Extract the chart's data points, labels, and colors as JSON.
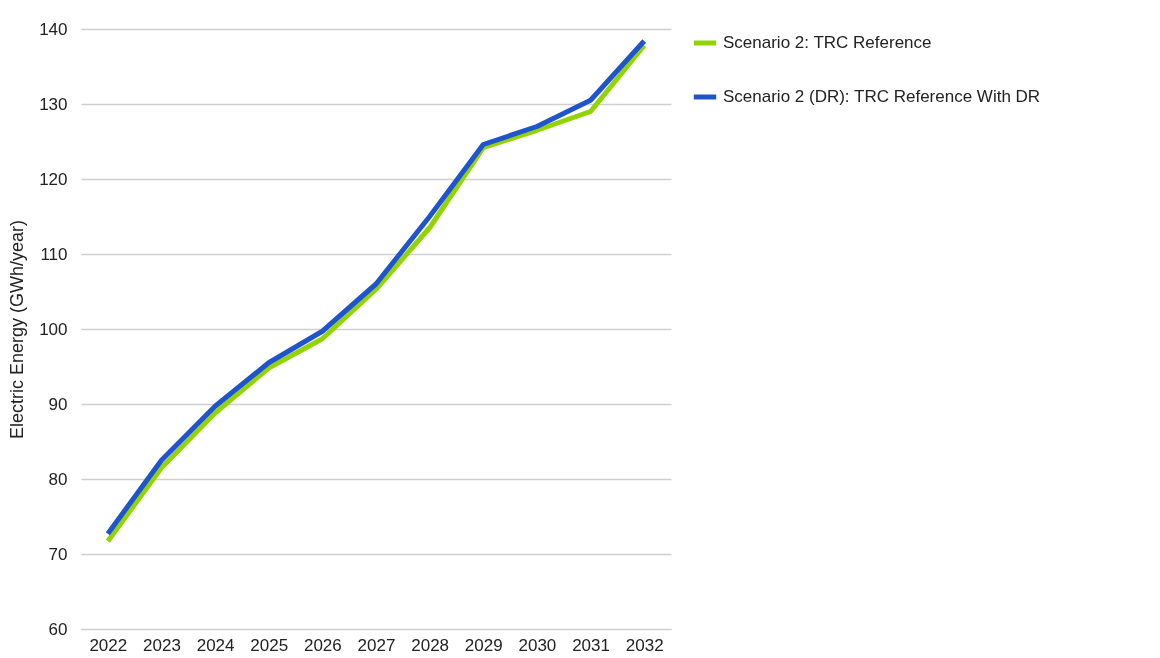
{
  "chart_data": {
    "type": "line",
    "ylabel": "Electric Energy (GWh/year)",
    "categories": [
      "2022",
      "2023",
      "2024",
      "2025",
      "2026",
      "2027",
      "2028",
      "2029",
      "2030",
      "2031",
      "2032"
    ],
    "series": [
      {
        "name": "Scenario 2: TRC Reference",
        "color": "#92d400",
        "values": [
          71.7,
          81.5,
          88.8,
          94.8,
          98.7,
          105.3,
          113.5,
          124.2,
          126.5,
          129.0,
          137.8
        ]
      },
      {
        "name": "Scenario 2 (DR): TRC Reference With DR",
        "color": "#1f55cc",
        "values": [
          72.7,
          82.5,
          89.7,
          95.5,
          99.7,
          106.0,
          115.0,
          124.6,
          127.0,
          130.5,
          138.4
        ]
      }
    ],
    "ylim": [
      60,
      140
    ],
    "yticks": [
      60,
      70,
      80,
      90,
      100,
      110,
      120,
      130,
      140
    ],
    "grid": "y",
    "legend": "right",
    "marker": "none",
    "line_style": "solid"
  }
}
